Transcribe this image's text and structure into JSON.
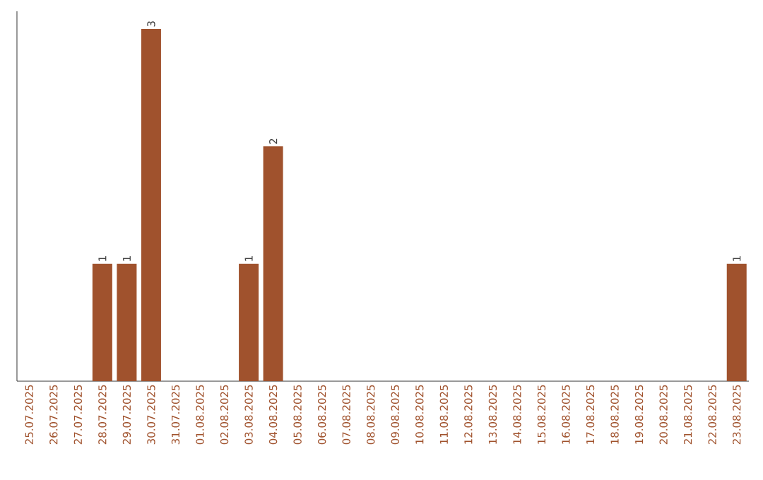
{
  "chart_data": {
    "type": "bar",
    "categories": [
      "25.07.2025",
      "26.07.2025",
      "27.07.2025",
      "28.07.2025",
      "29.07.2025",
      "30.07.2025",
      "31.07.2025",
      "01.08.2025",
      "02.08.2025",
      "03.08.2025",
      "04.08.2025",
      "05.08.2025",
      "06.08.2025",
      "07.08.2025",
      "08.08.2025",
      "09.08.2025",
      "10.08.2025",
      "11.08.2025",
      "12.08.2025",
      "13.08.2025",
      "14.08.2025",
      "15.08.2025",
      "16.08.2025",
      "17.08.2025",
      "18.08.2025",
      "19.08.2025",
      "20.08.2025",
      "21.08.2025",
      "22.08.2025",
      "23.08.2025"
    ],
    "values": [
      0,
      0,
      0,
      1,
      1,
      3,
      0,
      0,
      0,
      1,
      2,
      0,
      0,
      0,
      0,
      0,
      0,
      0,
      0,
      0,
      0,
      0,
      0,
      0,
      0,
      0,
      0,
      0,
      0,
      1
    ],
    "value_labels": [
      null,
      null,
      null,
      "1",
      "1",
      "3",
      null,
      null,
      null,
      "1",
      "2",
      null,
      null,
      null,
      null,
      null,
      null,
      null,
      null,
      null,
      null,
      null,
      null,
      null,
      null,
      null,
      null,
      null,
      null,
      "1"
    ],
    "color": "#a0522d",
    "tick_labels": "x"
  }
}
